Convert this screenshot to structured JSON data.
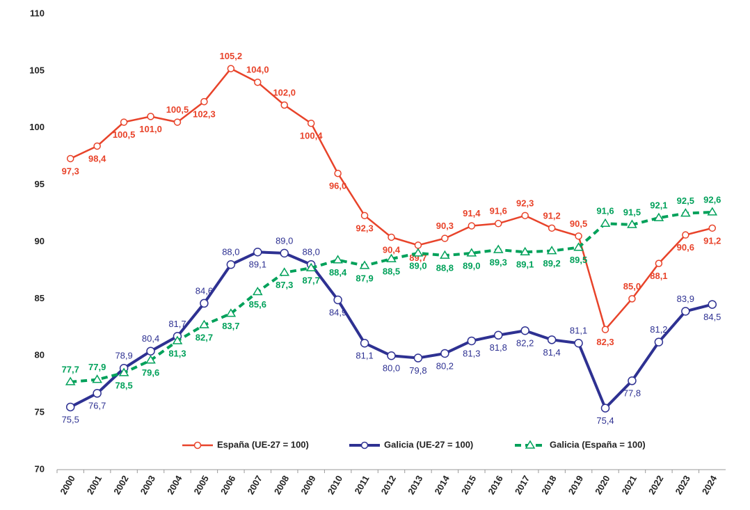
{
  "chart_data": {
    "type": "line",
    "categories": [
      "2000",
      "2001",
      "2002",
      "2003",
      "2004",
      "2005",
      "2006",
      "2007",
      "2008",
      "2009",
      "2010",
      "2011",
      "2012",
      "2013",
      "2014",
      "2015",
      "2016",
      "2017",
      "2018",
      "2019",
      "2020",
      "2021",
      "2022",
      "2023",
      "2024"
    ],
    "ylim": [
      70,
      110
    ],
    "yticks": [
      70,
      75,
      80,
      85,
      90,
      95,
      100,
      105,
      110
    ],
    "grid": false,
    "legend": "bottom",
    "series": [
      {
        "name": "España (UE-27 = 100)",
        "color": "#e8432a",
        "marker": "circle",
        "values": [
          97.3,
          98.4,
          100.5,
          101.0,
          100.5,
          102.3,
          105.2,
          104.0,
          102.0,
          100.4,
          96.0,
          92.3,
          90.4,
          89.7,
          90.3,
          91.4,
          91.6,
          92.3,
          91.2,
          90.5,
          82.3,
          85.0,
          88.1,
          90.6,
          91.2
        ],
        "value_labels": [
          "97,3",
          "98,4",
          "100,5",
          "101,0",
          "100,5",
          "102,3",
          "105,2",
          "104,0",
          "102,0",
          "100,4",
          "96,0",
          "92,3",
          "90,4",
          "89,7",
          "90,3",
          "91,4",
          "91,6",
          "92,3",
          "91,2",
          "90,5",
          "82,3",
          "85,0",
          "88,1",
          "90,6",
          "91,2"
        ]
      },
      {
        "name": "Galicia (UE-27 = 100)",
        "color": "#2e3192",
        "marker": "circle",
        "values": [
          75.5,
          76.7,
          78.9,
          80.4,
          81.7,
          84.6,
          88.0,
          89.1,
          89.0,
          88.0,
          84.9,
          81.1,
          80.0,
          79.8,
          80.2,
          81.3,
          81.8,
          82.2,
          81.4,
          81.1,
          75.4,
          77.8,
          81.2,
          83.9,
          84.5
        ],
        "value_labels": [
          "75,5",
          "76,7",
          "78,9",
          "80,4",
          "81,7",
          "84,6",
          "88,0",
          "89,1",
          "89,0",
          "88,0",
          "84,9",
          "81,1",
          "80,0",
          "79,8",
          "80,2",
          "81,3",
          "81,8",
          "82,2",
          "81,4",
          "81,1",
          "75,4",
          "77,8",
          "81,2",
          "83,9",
          "84,5"
        ]
      },
      {
        "name": "Galicia (España = 100)",
        "color": "#00a15a",
        "marker": "triangle",
        "dashed": true,
        "values": [
          77.7,
          77.9,
          78.5,
          79.6,
          81.3,
          82.7,
          83.7,
          85.6,
          87.3,
          87.7,
          88.4,
          87.9,
          88.5,
          89.0,
          88.8,
          89.0,
          89.3,
          89.1,
          89.2,
          89.5,
          91.6,
          91.5,
          92.1,
          92.5,
          92.6
        ],
        "value_labels": [
          "77,7",
          "77,9",
          "78,5",
          "79,6",
          "81,3",
          "82,7",
          "83,7",
          "85,6",
          "87,3",
          "87,7",
          "88,4",
          "87,9",
          "88,5",
          "89,0",
          "88,8",
          "89,0",
          "89,3",
          "89,1",
          "89,2",
          "89,5",
          "91,6",
          "91,5",
          "92,1",
          "92,5",
          "92,6"
        ]
      }
    ]
  }
}
